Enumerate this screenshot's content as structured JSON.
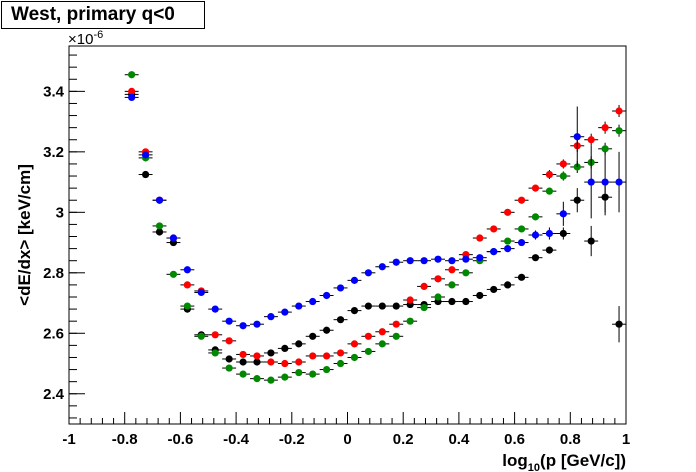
{
  "chart_data": {
    "type": "scatter",
    "title": "West, primary q<0",
    "xlabel_main": "log",
    "xlabel_sub": "10",
    "xlabel_rest": "(p [GeV/c])",
    "ylabel": "<dE/dx> [keV/cm]",
    "y_scale_base": "×10",
    "y_scale_exp": "-6",
    "xlim": [
      -1,
      1
    ],
    "ylim": [
      2.3,
      3.55
    ],
    "x_ticks": [
      -1,
      -0.8,
      -0.6,
      -0.4,
      -0.2,
      0,
      0.2,
      0.4,
      0.6,
      0.8,
      1
    ],
    "x_tick_labels": [
      "-1",
      "-0.8",
      "-0.6",
      "-0.4",
      "-0.2",
      "0",
      "0.2",
      "0.4",
      "0.6",
      "0.8",
      "1"
    ],
    "y_ticks": [
      2.4,
      2.6,
      2.8,
      3.0,
      3.2,
      3.4
    ],
    "y_tick_labels": [
      "2.4",
      "2.6",
      "2.8",
      "3",
      "3.2",
      "3.4"
    ],
    "grid": false,
    "series": [
      {
        "color": "#000000",
        "points": [
          [
            -0.775,
            3.39,
            0.01
          ],
          [
            -0.725,
            3.125,
            0.01
          ],
          [
            -0.675,
            2.935,
            0.01
          ],
          [
            -0.625,
            2.9,
            0.01
          ],
          [
            -0.575,
            2.68,
            0.01
          ],
          [
            -0.525,
            2.595,
            0.01
          ],
          [
            -0.475,
            2.545,
            0.005
          ],
          [
            -0.425,
            2.515,
            0.005
          ],
          [
            -0.375,
            2.505,
            0.005
          ],
          [
            -0.325,
            2.505,
            0.005
          ],
          [
            -0.275,
            2.535,
            0.005
          ],
          [
            -0.225,
            2.55,
            0.005
          ],
          [
            -0.175,
            2.565,
            0.005
          ],
          [
            -0.125,
            2.59,
            0.005
          ],
          [
            -0.075,
            2.61,
            0.005
          ],
          [
            -0.025,
            2.645,
            0.005
          ],
          [
            0.025,
            2.675,
            0.005
          ],
          [
            0.075,
            2.69,
            0.005
          ],
          [
            0.125,
            2.69,
            0.005
          ],
          [
            0.175,
            2.69,
            0.005
          ],
          [
            0.225,
            2.695,
            0.005
          ],
          [
            0.275,
            2.695,
            0.005
          ],
          [
            0.325,
            2.705,
            0.005
          ],
          [
            0.375,
            2.705,
            0.005
          ],
          [
            0.425,
            2.705,
            0.005
          ],
          [
            0.475,
            2.725,
            0.005
          ],
          [
            0.525,
            2.745,
            0.005
          ],
          [
            0.575,
            2.76,
            0.005
          ],
          [
            0.625,
            2.785,
            0.01
          ],
          [
            0.675,
            2.85,
            0.01
          ],
          [
            0.725,
            2.875,
            0.01
          ],
          [
            0.775,
            2.93,
            0.02
          ],
          [
            0.825,
            3.04,
            0.04
          ],
          [
            0.875,
            2.905,
            0.05
          ],
          [
            0.925,
            3.05,
            0.06
          ],
          [
            0.975,
            2.63,
            0.06
          ]
        ]
      },
      {
        "color": "#ff0000",
        "points": [
          [
            -0.775,
            3.4,
            0.01
          ],
          [
            -0.725,
            3.2,
            0.01
          ],
          [
            -0.675,
            3.04,
            0.01
          ],
          [
            -0.625,
            2.915,
            0.01
          ],
          [
            -0.575,
            2.76,
            0.01
          ],
          [
            -0.525,
            2.74,
            0.01
          ],
          [
            -0.475,
            2.595,
            0.005
          ],
          [
            -0.425,
            2.575,
            0.005
          ],
          [
            -0.375,
            2.53,
            0.005
          ],
          [
            -0.325,
            2.525,
            0.005
          ],
          [
            -0.275,
            2.505,
            0.005
          ],
          [
            -0.225,
            2.5,
            0.005
          ],
          [
            -0.175,
            2.505,
            0.005
          ],
          [
            -0.125,
            2.525,
            0.005
          ],
          [
            -0.075,
            2.525,
            0.005
          ],
          [
            -0.025,
            2.535,
            0.005
          ],
          [
            0.025,
            2.565,
            0.005
          ],
          [
            0.075,
            2.59,
            0.005
          ],
          [
            0.125,
            2.605,
            0.005
          ],
          [
            0.175,
            2.63,
            0.005
          ],
          [
            0.225,
            2.71,
            0.005
          ],
          [
            0.275,
            2.755,
            0.005
          ],
          [
            0.325,
            2.78,
            0.005
          ],
          [
            0.375,
            2.81,
            0.005
          ],
          [
            0.425,
            2.86,
            0.005
          ],
          [
            0.475,
            2.915,
            0.005
          ],
          [
            0.525,
            2.945,
            0.005
          ],
          [
            0.575,
            3.0,
            0.005
          ],
          [
            0.625,
            3.04,
            0.01
          ],
          [
            0.675,
            3.08,
            0.01
          ],
          [
            0.725,
            3.125,
            0.015
          ],
          [
            0.775,
            3.16,
            0.015
          ],
          [
            0.825,
            3.22,
            0.02
          ],
          [
            0.875,
            3.24,
            0.02
          ],
          [
            0.925,
            3.28,
            0.02
          ],
          [
            0.975,
            3.335,
            0.02
          ]
        ]
      },
      {
        "color": "#008800",
        "points": [
          [
            -0.775,
            3.455,
            0.01
          ],
          [
            -0.725,
            3.18,
            0.01
          ],
          [
            -0.675,
            2.955,
            0.01
          ],
          [
            -0.625,
            2.795,
            0.01
          ],
          [
            -0.575,
            2.69,
            0.01
          ],
          [
            -0.525,
            2.59,
            0.005
          ],
          [
            -0.475,
            2.535,
            0.005
          ],
          [
            -0.425,
            2.485,
            0.005
          ],
          [
            -0.375,
            2.465,
            0.005
          ],
          [
            -0.325,
            2.45,
            0.005
          ],
          [
            -0.275,
            2.445,
            0.005
          ],
          [
            -0.225,
            2.455,
            0.005
          ],
          [
            -0.175,
            2.47,
            0.005
          ],
          [
            -0.125,
            2.465,
            0.005
          ],
          [
            -0.075,
            2.48,
            0.005
          ],
          [
            -0.025,
            2.5,
            0.005
          ],
          [
            0.025,
            2.52,
            0.005
          ],
          [
            0.075,
            2.54,
            0.005
          ],
          [
            0.125,
            2.565,
            0.005
          ],
          [
            0.175,
            2.59,
            0.005
          ],
          [
            0.225,
            2.64,
            0.005
          ],
          [
            0.275,
            2.685,
            0.005
          ],
          [
            0.325,
            2.72,
            0.005
          ],
          [
            0.375,
            2.76,
            0.005
          ],
          [
            0.425,
            2.8,
            0.005
          ],
          [
            0.475,
            2.84,
            0.005
          ],
          [
            0.525,
            2.87,
            0.005
          ],
          [
            0.575,
            2.905,
            0.005
          ],
          [
            0.625,
            2.945,
            0.01
          ],
          [
            0.675,
            2.985,
            0.01
          ],
          [
            0.725,
            3.07,
            0.01
          ],
          [
            0.775,
            3.12,
            0.015
          ],
          [
            0.825,
            3.15,
            0.02
          ],
          [
            0.875,
            3.165,
            0.02
          ],
          [
            0.925,
            3.21,
            0.02
          ],
          [
            0.975,
            3.27,
            0.02
          ]
        ]
      },
      {
        "color": "#0000ff",
        "points": [
          [
            -0.775,
            3.38,
            0.01
          ],
          [
            -0.725,
            3.19,
            0.01
          ],
          [
            -0.675,
            3.04,
            0.01
          ],
          [
            -0.625,
            2.915,
            0.01
          ],
          [
            -0.575,
            2.81,
            0.01
          ],
          [
            -0.525,
            2.735,
            0.005
          ],
          [
            -0.475,
            2.68,
            0.005
          ],
          [
            -0.425,
            2.64,
            0.005
          ],
          [
            -0.375,
            2.625,
            0.005
          ],
          [
            -0.325,
            2.63,
            0.005
          ],
          [
            -0.275,
            2.655,
            0.005
          ],
          [
            -0.225,
            2.67,
            0.005
          ],
          [
            -0.175,
            2.69,
            0.005
          ],
          [
            -0.125,
            2.705,
            0.005
          ],
          [
            -0.075,
            2.725,
            0.005
          ],
          [
            -0.025,
            2.75,
            0.005
          ],
          [
            0.025,
            2.775,
            0.005
          ],
          [
            0.075,
            2.8,
            0.005
          ],
          [
            0.125,
            2.82,
            0.005
          ],
          [
            0.175,
            2.835,
            0.005
          ],
          [
            0.225,
            2.84,
            0.005
          ],
          [
            0.275,
            2.84,
            0.005
          ],
          [
            0.325,
            2.845,
            0.005
          ],
          [
            0.375,
            2.84,
            0.005
          ],
          [
            0.425,
            2.845,
            0.005
          ],
          [
            0.475,
            2.85,
            0.005
          ],
          [
            0.525,
            2.87,
            0.005
          ],
          [
            0.575,
            2.88,
            0.01
          ],
          [
            0.625,
            2.9,
            0.01
          ],
          [
            0.675,
            2.925,
            0.015
          ],
          [
            0.725,
            2.93,
            0.02
          ],
          [
            0.775,
            2.995,
            0.04
          ],
          [
            0.825,
            3.25,
            0.1
          ],
          [
            0.875,
            3.1,
            0.12
          ],
          [
            0.925,
            3.1,
            0.1
          ],
          [
            0.975,
            3.1,
            0.1
          ]
        ]
      }
    ]
  }
}
